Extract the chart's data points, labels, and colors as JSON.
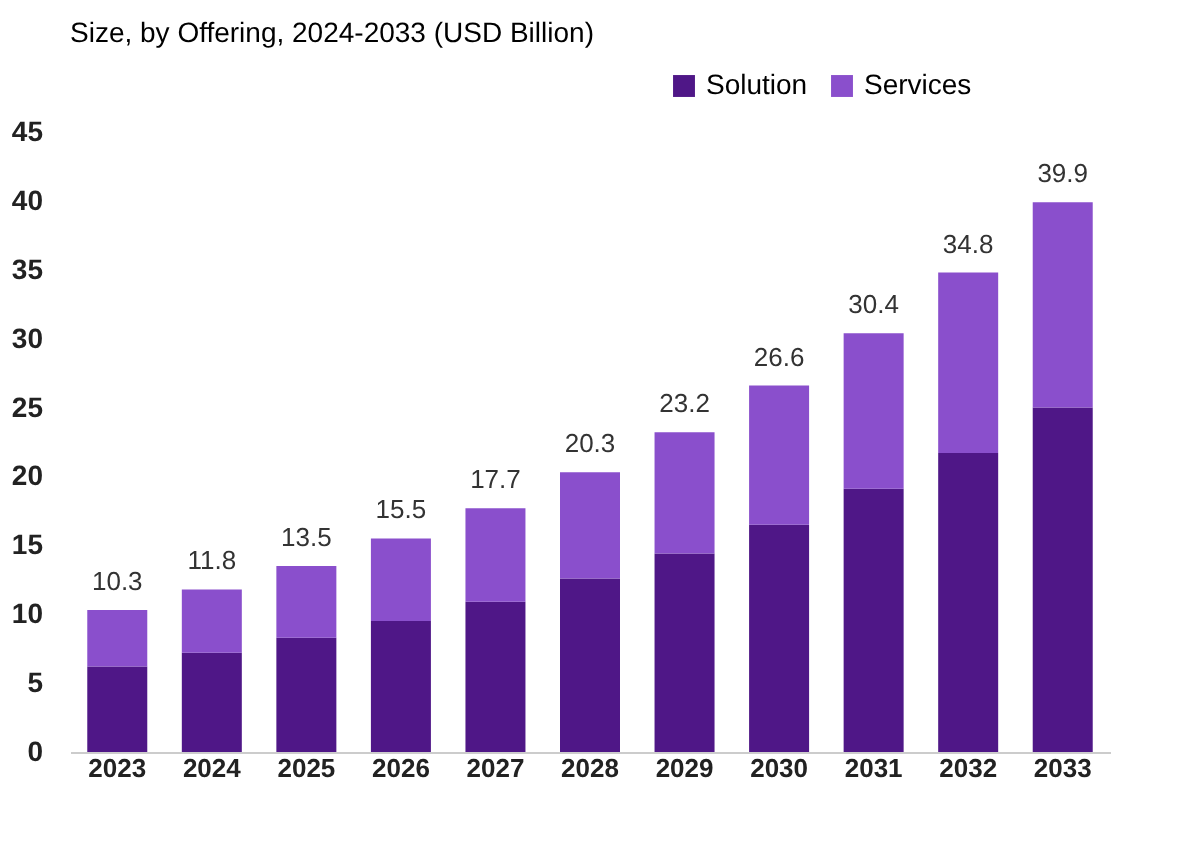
{
  "chart_data": {
    "type": "bar",
    "title": "Size, by Offering, 2024-2033 (USD Billion)",
    "categories": [
      "2023",
      "2024",
      "2025",
      "2026",
      "2027",
      "2028",
      "2029",
      "2030",
      "2031",
      "2032",
      "2033"
    ],
    "stacked": true,
    "series": [
      {
        "name": "Solution",
        "color": "#4f1787",
        "values": [
          6.2,
          7.2,
          8.3,
          9.5,
          10.9,
          12.6,
          14.4,
          16.5,
          19.1,
          21.7,
          25.0
        ]
      },
      {
        "name": "Services",
        "color": "#8a4fcc",
        "values": [
          4.1,
          4.6,
          5.2,
          6.0,
          6.8,
          7.7,
          8.8,
          10.1,
          11.3,
          13.1,
          14.9
        ]
      }
    ],
    "totals": [
      "10.3",
      "11.8",
      "13.5",
      "15.5",
      "17.7",
      "20.3",
      "23.2",
      "26.6",
      "30.4",
      "34.8",
      "39.9"
    ],
    "ylim": [
      0,
      45
    ],
    "yticks": [
      0,
      5,
      10,
      15,
      20,
      25,
      30,
      35,
      40,
      45
    ],
    "grid": false,
    "legend": "top right"
  }
}
